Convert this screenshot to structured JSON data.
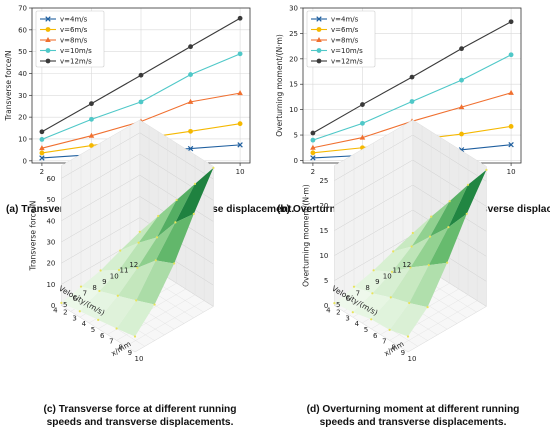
{
  "chart_data": [
    {
      "id": "a",
      "type": "line",
      "caption": "(a) Transverse force generated by transverse displacement.",
      "xlabel": "x/mm",
      "ylabel": "Transverse force/N",
      "x": [
        2,
        4,
        6,
        8,
        10
      ],
      "xticks": [
        2,
        4,
        6,
        8,
        10
      ],
      "xlim": [
        1.6,
        10.4
      ],
      "ylim": [
        -1,
        70
      ],
      "yticks": [
        0,
        10,
        20,
        30,
        40,
        50,
        60,
        70
      ],
      "grid": true,
      "legend_position": "top-left",
      "series": [
        {
          "name": "v=4m/s",
          "color": "#1f5f9f",
          "marker": "x",
          "values": [
            1.3,
            2.8,
            4.2,
            5.6,
            7.3
          ]
        },
        {
          "name": "v=6m/s",
          "color": "#f5b800",
          "marker": "circle",
          "values": [
            3.6,
            7,
            10.2,
            13.5,
            17
          ]
        },
        {
          "name": "v=8m/s",
          "color": "#f07030",
          "marker": "triangle",
          "values": [
            5.8,
            11.5,
            18,
            27,
            31
          ]
        },
        {
          "name": "v=10m/s",
          "color": "#4fc8c8",
          "marker": "circle",
          "values": [
            9.8,
            19,
            27,
            39.5,
            49
          ]
        },
        {
          "name": "v=12m/s",
          "color": "#3a3a3a",
          "marker": "circle",
          "values": [
            13.3,
            26.2,
            39.2,
            52.3,
            65.3
          ]
        }
      ]
    },
    {
      "id": "b",
      "type": "line",
      "caption": "(b) Overturning moment generated by transverse displacement.",
      "xlabel": "x/mm",
      "ylabel": "Overturning moment/(N·m)",
      "x": [
        2,
        4,
        6,
        8,
        10
      ],
      "xticks": [
        2,
        4,
        6,
        8,
        10
      ],
      "xlim": [
        1.6,
        10.4
      ],
      "ylim": [
        -0.5,
        30
      ],
      "yticks": [
        0,
        5,
        10,
        15,
        20,
        25,
        30
      ],
      "grid": true,
      "legend_position": "top-left",
      "series": [
        {
          "name": "v=4m/s",
          "color": "#1f5f9f",
          "marker": "x",
          "values": [
            0.5,
            1.0,
            1.9,
            2.1,
            3.1
          ]
        },
        {
          "name": "v=6m/s",
          "color": "#f5b800",
          "marker": "circle",
          "values": [
            1.5,
            2.5,
            4.0,
            5.2,
            6.7
          ]
        },
        {
          "name": "v=8m/s",
          "color": "#f07030",
          "marker": "triangle",
          "values": [
            2.5,
            4.5,
            7.7,
            10.5,
            13.3
          ]
        },
        {
          "name": "v=10m/s",
          "color": "#4fc8c8",
          "marker": "circle",
          "values": [
            4.0,
            7.3,
            11.6,
            15.8,
            20.8
          ]
        },
        {
          "name": "v=12m/s",
          "color": "#3a3a3a",
          "marker": "circle",
          "values": [
            5.4,
            11.0,
            16.4,
            22.0,
            27.3
          ]
        }
      ]
    },
    {
      "id": "c",
      "type": "surface3d",
      "caption_lines": [
        "(c) Transverse force at different running",
        "speeds and transverse displacements."
      ],
      "xlabel": "x/mm",
      "ylabel": "Velocity/(m/s)",
      "zlabel": "Transverse force/N",
      "x": [
        2,
        4,
        6,
        8,
        10
      ],
      "y": [
        4,
        6,
        8,
        10,
        12
      ],
      "xticks": [
        2,
        3,
        4,
        5,
        6,
        7,
        8,
        9,
        10
      ],
      "yticks": [
        4,
        5,
        6,
        7,
        8,
        9,
        10,
        11,
        12
      ],
      "zticks": [
        0,
        10,
        20,
        30,
        40,
        50,
        60
      ],
      "zlim": [
        0,
        66
      ],
      "colormap": "Greens",
      "z": [
        [
          1.3,
          2.8,
          4.2,
          5.6,
          7.3
        ],
        [
          3.6,
          7,
          10.2,
          13.5,
          17
        ],
        [
          5.8,
          11.5,
          18,
          27,
          31
        ],
        [
          9.8,
          19,
          27,
          39.5,
          49
        ],
        [
          13.3,
          26.2,
          39.2,
          52.3,
          65.3
        ]
      ]
    },
    {
      "id": "d",
      "type": "surface3d",
      "caption_lines": [
        "(d) Overturning moment at different running",
        "speeds and transverse displacements."
      ],
      "xlabel": "x/mm",
      "ylabel": "Velocity/(m/s)",
      "zlabel": "Overturning moment/(N·m)",
      "x": [
        2,
        4,
        6,
        8,
        10
      ],
      "y": [
        4,
        6,
        8,
        10,
        12
      ],
      "xticks": [
        2,
        3,
        4,
        5,
        6,
        7,
        8,
        9,
        10
      ],
      "yticks": [
        4,
        5,
        6,
        7,
        8,
        9,
        10,
        11,
        12
      ],
      "zticks": [
        0,
        5,
        10,
        15,
        20,
        25
      ],
      "zlim": [
        0,
        28
      ],
      "colormap": "Greens",
      "z": [
        [
          0.5,
          1.0,
          1.9,
          2.1,
          3.1
        ],
        [
          1.5,
          2.5,
          4.0,
          5.2,
          6.7
        ],
        [
          2.5,
          4.5,
          7.7,
          10.5,
          13.3
        ],
        [
          4.0,
          7.3,
          11.6,
          15.8,
          20.8
        ],
        [
          5.4,
          11.0,
          16.4,
          22.0,
          27.3
        ]
      ]
    }
  ]
}
